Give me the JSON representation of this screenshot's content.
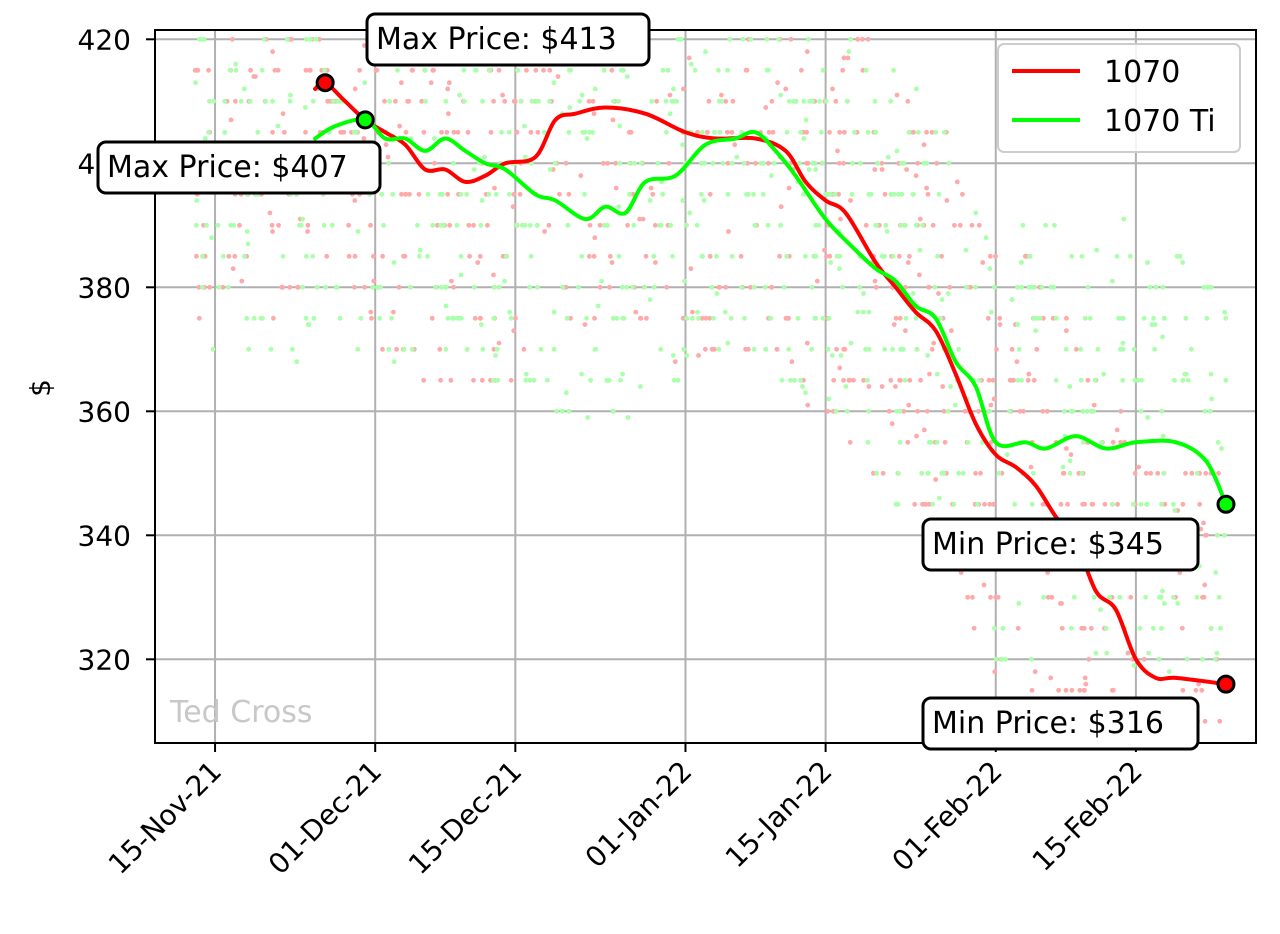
{
  "chart_data": {
    "type": "line",
    "title": "",
    "xlabel": "",
    "ylabel": "$",
    "ylim": [
      306.5,
      421.5
    ],
    "xlim": [
      "2021-11-09",
      "2022-02-27"
    ],
    "yticks": [
      320,
      340,
      360,
      380,
      400,
      420
    ],
    "xticks": [
      "2021-11-15",
      "2021-12-01",
      "2021-12-15",
      "2022-01-01",
      "2022-01-15",
      "2022-02-01",
      "2022-02-15"
    ],
    "xtick_labels": [
      "15-Nov-21",
      "01-Dec-21",
      "15-Dec-21",
      "01-Jan-22",
      "15-Jan-22",
      "01-Feb-22",
      "15-Feb-22"
    ],
    "grid": true,
    "legend_position": "top-right",
    "colors": {
      "series_1070": "#ff0000",
      "series_1070ti": "#00ff00",
      "scatter_1070": "#ffaaaa",
      "scatter_1070ti": "#aaffaa"
    },
    "series": [
      {
        "name": "1070",
        "color": "#ff0000",
        "points": [
          [
            "2021-11-25",
            412
          ],
          [
            "2021-11-26",
            413
          ],
          [
            "2021-11-28",
            410
          ],
          [
            "2021-11-30",
            407
          ],
          [
            "2021-12-02",
            405
          ],
          [
            "2021-12-04",
            403
          ],
          [
            "2021-12-06",
            399
          ],
          [
            "2021-12-08",
            399
          ],
          [
            "2021-12-10",
            397
          ],
          [
            "2021-12-12",
            398
          ],
          [
            "2021-12-14",
            400
          ],
          [
            "2021-12-17",
            401
          ],
          [
            "2021-12-19",
            407
          ],
          [
            "2021-12-21",
            408
          ],
          [
            "2021-12-24",
            409
          ],
          [
            "2021-12-28",
            408
          ],
          [
            "2022-01-01",
            405
          ],
          [
            "2022-01-04",
            404
          ],
          [
            "2022-01-08",
            404
          ],
          [
            "2022-01-11",
            402
          ],
          [
            "2022-01-13",
            397
          ],
          [
            "2022-01-15",
            394
          ],
          [
            "2022-01-17",
            392
          ],
          [
            "2022-01-20",
            384
          ],
          [
            "2022-01-22",
            380
          ],
          [
            "2022-01-24",
            376
          ],
          [
            "2022-01-26",
            373
          ],
          [
            "2022-01-28",
            366
          ],
          [
            "2022-01-30",
            358
          ],
          [
            "2022-02-01",
            353
          ],
          [
            "2022-02-03",
            351
          ],
          [
            "2022-02-05",
            348
          ],
          [
            "2022-02-07",
            343
          ],
          [
            "2022-02-09",
            339
          ],
          [
            "2022-02-11",
            331
          ],
          [
            "2022-02-13",
            328
          ],
          [
            "2022-02-15",
            320
          ],
          [
            "2022-02-17",
            317
          ],
          [
            "2022-02-19",
            317
          ],
          [
            "2022-02-24",
            316
          ]
        ],
        "max": {
          "date": "2021-11-26",
          "value": 413
        },
        "min": {
          "date": "2022-02-24",
          "value": 316
        }
      },
      {
        "name": "1070 Ti",
        "color": "#00ff00",
        "points": [
          [
            "2021-11-25",
            404
          ],
          [
            "2021-11-27",
            406
          ],
          [
            "2021-11-30",
            407
          ],
          [
            "2021-12-02",
            404
          ],
          [
            "2021-12-04",
            404
          ],
          [
            "2021-12-06",
            402
          ],
          [
            "2021-12-08",
            404
          ],
          [
            "2021-12-10",
            402
          ],
          [
            "2021-12-12",
            400
          ],
          [
            "2021-12-14",
            399
          ],
          [
            "2021-12-17",
            395
          ],
          [
            "2021-12-19",
            394
          ],
          [
            "2021-12-22",
            391
          ],
          [
            "2021-12-24",
            393
          ],
          [
            "2021-12-26",
            392
          ],
          [
            "2021-12-28",
            397
          ],
          [
            "2021-12-31",
            398
          ],
          [
            "2022-01-03",
            403
          ],
          [
            "2022-01-06",
            404
          ],
          [
            "2022-01-08",
            405
          ],
          [
            "2022-01-10",
            402
          ],
          [
            "2022-01-12",
            398
          ],
          [
            "2022-01-15",
            391
          ],
          [
            "2022-01-18",
            386
          ],
          [
            "2022-01-20",
            383
          ],
          [
            "2022-01-22",
            381
          ],
          [
            "2022-01-24",
            377
          ],
          [
            "2022-01-26",
            375
          ],
          [
            "2022-01-28",
            368
          ],
          [
            "2022-01-30",
            364
          ],
          [
            "2022-02-01",
            355
          ],
          [
            "2022-02-04",
            355
          ],
          [
            "2022-02-06",
            354
          ],
          [
            "2022-02-09",
            356
          ],
          [
            "2022-02-12",
            354
          ],
          [
            "2022-02-15",
            355
          ],
          [
            "2022-02-19",
            355
          ],
          [
            "2022-02-22",
            352
          ],
          [
            "2022-02-24",
            345
          ]
        ],
        "max": {
          "date": "2021-11-30",
          "value": 407
        },
        "min": {
          "date": "2022-02-24",
          "value": 345
        }
      }
    ],
    "annotations": [
      {
        "text": "Max Price: $413",
        "series": "1070"
      },
      {
        "text": "Max Price: $407",
        "series": "1070 Ti"
      },
      {
        "text": "Min Price: $345",
        "series": "1070 Ti"
      },
      {
        "text": "Min Price: $316",
        "series": "1070"
      }
    ],
    "watermark": "Ted Cross"
  }
}
